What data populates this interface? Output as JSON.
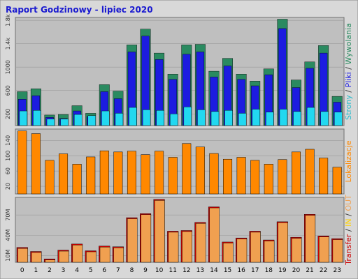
{
  "title": "Raport Godzinowy -  lipiec 2020",
  "colors": {
    "background": "#d8d8d8",
    "panel": "#bfbfbf",
    "title": "#1a1ad0",
    "hits": "#2a8a60",
    "files": "#1c1ce0",
    "pages": "#22d8f0",
    "sites": "#ff8800",
    "kbytes": "#f0a050",
    "kbytes_edge": "#cc0000"
  },
  "chart_data": [
    {
      "type": "bar",
      "name": "hits-files-pages",
      "categories": [
        "0",
        "1",
        "2",
        "3",
        "4",
        "5",
        "6",
        "7",
        "8",
        "9",
        "10",
        "11",
        "12",
        "13",
        "14",
        "15",
        "16",
        "17",
        "18",
        "19",
        "20",
        "21",
        "22",
        "23"
      ],
      "ytick_labels": [
        "200",
        "600",
        "1000",
        "1.4k",
        "1.8k"
      ],
      "ytick_values": [
        200,
        600,
        1000,
        1400,
        1800
      ],
      "ylim": [
        0,
        1850
      ],
      "side_labels": [
        {
          "text": "Strony",
          "color": "#22bbcc"
        },
        {
          "text": " / ",
          "color": "#333333"
        },
        {
          "text": "Pliki",
          "color": "#1c1ce0"
        },
        {
          "text": " / ",
          "color": "#333333"
        },
        {
          "text": "Wywolania",
          "color": "#2a8a60"
        }
      ],
      "series": [
        {
          "name": "Wywolania",
          "color": "#2a8a60",
          "values": [
            580,
            630,
            180,
            190,
            340,
            210,
            700,
            590,
            1380,
            1650,
            1240,
            880,
            1380,
            1390,
            930,
            1150,
            880,
            760,
            970,
            1820,
            780,
            1090,
            1370,
            500
          ]
        },
        {
          "name": "Pliki",
          "color": "#1c1ce0",
          "values": [
            450,
            510,
            140,
            120,
            250,
            150,
            580,
            460,
            1260,
            1530,
            1130,
            790,
            1220,
            1260,
            830,
            1020,
            790,
            680,
            870,
            1660,
            650,
            980,
            1240,
            400
          ]
        },
        {
          "name": "Strony",
          "color": "#22d8f0",
          "values": [
            250,
            260,
            110,
            110,
            190,
            170,
            250,
            210,
            310,
            270,
            260,
            200,
            320,
            270,
            240,
            260,
            210,
            280,
            230,
            280,
            240,
            310,
            240,
            230
          ]
        }
      ]
    },
    {
      "type": "bar",
      "name": "sites",
      "categories": [
        "0",
        "1",
        "2",
        "3",
        "4",
        "5",
        "6",
        "7",
        "8",
        "9",
        "10",
        "11",
        "12",
        "13",
        "14",
        "15",
        "16",
        "17",
        "18",
        "19",
        "20",
        "21",
        "22",
        "23"
      ],
      "ytick_labels": [
        "20",
        "60",
        "100",
        "140"
      ],
      "ytick_values": [
        20,
        60,
        100,
        140
      ],
      "ylim": [
        0,
        170
      ],
      "side_labels": [
        {
          "text": "Lokalizacje",
          "color": "#ff8800"
        }
      ],
      "series": [
        {
          "name": "Lokalizacje",
          "color": "#ff8800",
          "values": [
            165,
            158,
            88,
            105,
            78,
            97,
            113,
            110,
            112,
            103,
            112,
            96,
            132,
            123,
            106,
            91,
            96,
            88,
            78,
            90,
            110,
            117,
            94,
            70
          ]
        }
      ]
    },
    {
      "type": "bar",
      "name": "transfer",
      "categories": [
        "0",
        "1",
        "2",
        "3",
        "4",
        "5",
        "6",
        "7",
        "8",
        "9",
        "10",
        "11",
        "12",
        "13",
        "14",
        "15",
        "16",
        "17",
        "18",
        "19",
        "20",
        "21",
        "22",
        "23"
      ],
      "ytick_labels": [
        "10M",
        "40M",
        "70M"
      ],
      "ytick_values": [
        10,
        40,
        70
      ],
      "ylim": [
        0,
        96
      ],
      "side_labels": [
        {
          "text": "Transfer",
          "color": "#cc0000"
        },
        {
          "text": " / ",
          "color": "#333333"
        },
        {
          "text": "IN",
          "color": "#ffd000"
        },
        {
          "text": " / ",
          "color": "#333333"
        },
        {
          "text": "OUT",
          "color": "#f0a050"
        }
      ],
      "series": [
        {
          "name": "Transfer",
          "color": "#f0a050",
          "values": [
            22,
            16,
            5,
            18,
            27,
            17,
            24,
            23,
            66,
            72,
            93,
            46,
            47,
            59,
            82,
            30,
            36,
            46,
            33,
            60,
            37,
            71,
            39,
            35
          ]
        }
      ]
    }
  ]
}
